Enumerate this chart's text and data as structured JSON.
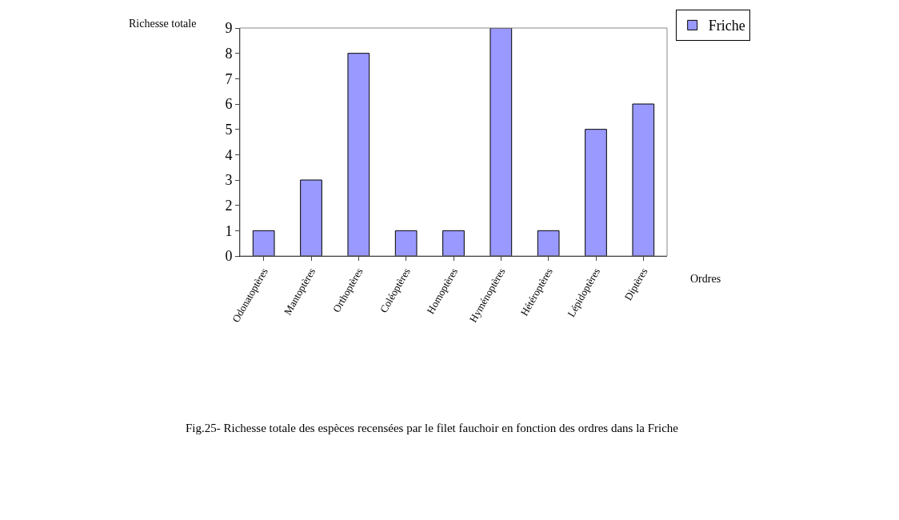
{
  "chart_data": {
    "type": "bar",
    "ylabel": "Richesse totale",
    "xlabel": "Ordres",
    "categories": [
      "Odonatoptères",
      "Mantoptères",
      "Orthoptères",
      "Coléoptères",
      "Homoptères",
      "Hyménoptères",
      "Hétéroptères",
      "Lépidoptères",
      "Diptères"
    ],
    "series": [
      {
        "name": "Friche",
        "color": "#9999ff",
        "values": [
          1,
          3,
          8,
          1,
          1,
          9,
          1,
          5,
          6
        ]
      }
    ],
    "ylim": [
      0,
      9
    ],
    "yticks": [
      0,
      1,
      2,
      3,
      4,
      5,
      6,
      7,
      8,
      9
    ],
    "grid": false,
    "legend": "top right",
    "annotations": [
      "Fig.25- Richesse totale des espèces recensées par le filet fauchoir en fonction des ordres dans la Friche"
    ]
  }
}
